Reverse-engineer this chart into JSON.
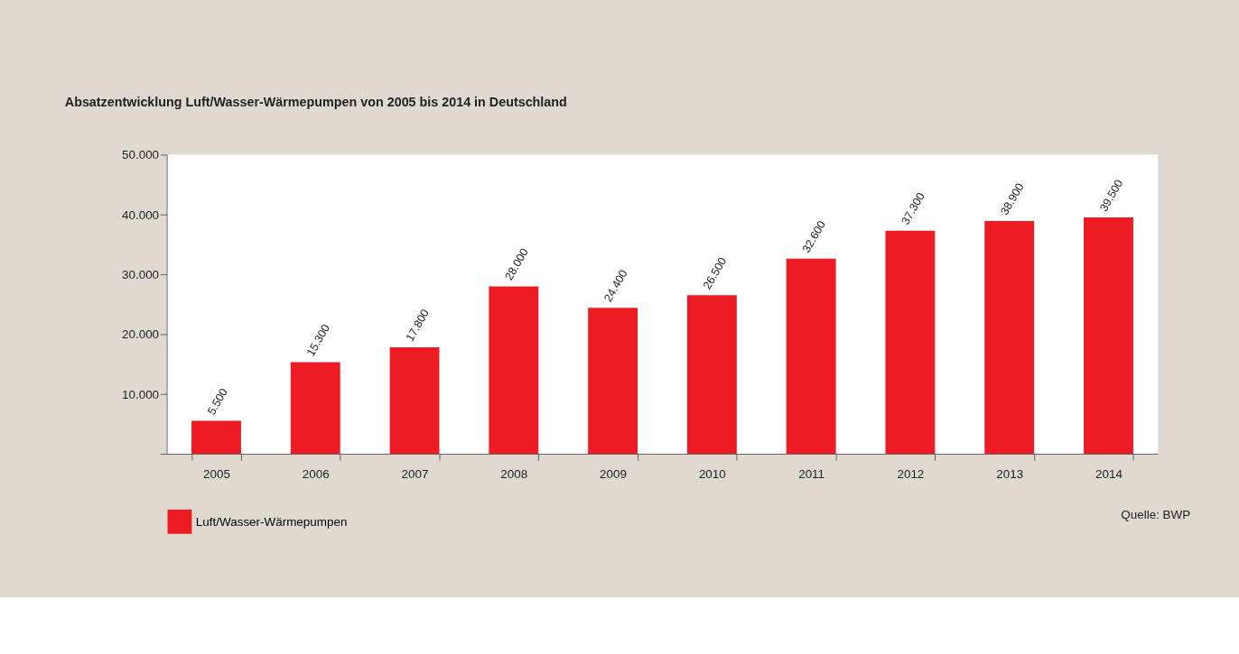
{
  "chart_data": {
    "type": "bar",
    "title": "Absatzentwicklung Luft/Wasser-Wärmepumpen von 2005 bis 2014 in Deutschland",
    "categories": [
      "2005",
      "2006",
      "2007",
      "2008",
      "2009",
      "2010",
      "2011",
      "2012",
      "2013",
      "2014"
    ],
    "series": [
      {
        "name": "Luft/Wasser-Wärmepumpen",
        "color": "#ed1c24",
        "values": [
          5500,
          15300,
          17800,
          28000,
          24400,
          26500,
          32600,
          37300,
          38900,
          39500
        ],
        "value_labels": [
          "5.500",
          "15.300",
          "17.800",
          "28.000",
          "24.400",
          "26.500",
          "32.600",
          "37.300",
          "38.900",
          "39.500"
        ]
      }
    ],
    "ylim": [
      0,
      50000
    ],
    "yticks": [
      {
        "value": 0,
        "label": null
      },
      {
        "value": 10000,
        "label": "10.000"
      },
      {
        "value": 20000,
        "label": "20.000"
      },
      {
        "value": 30000,
        "label": "30.000"
      },
      {
        "value": 40000,
        "label": "40.000"
      },
      {
        "value": 50000,
        "label": "50.000"
      }
    ],
    "grid": false,
    "legend": "bottom left",
    "annotations": [
      "Quelle: BWP"
    ]
  }
}
